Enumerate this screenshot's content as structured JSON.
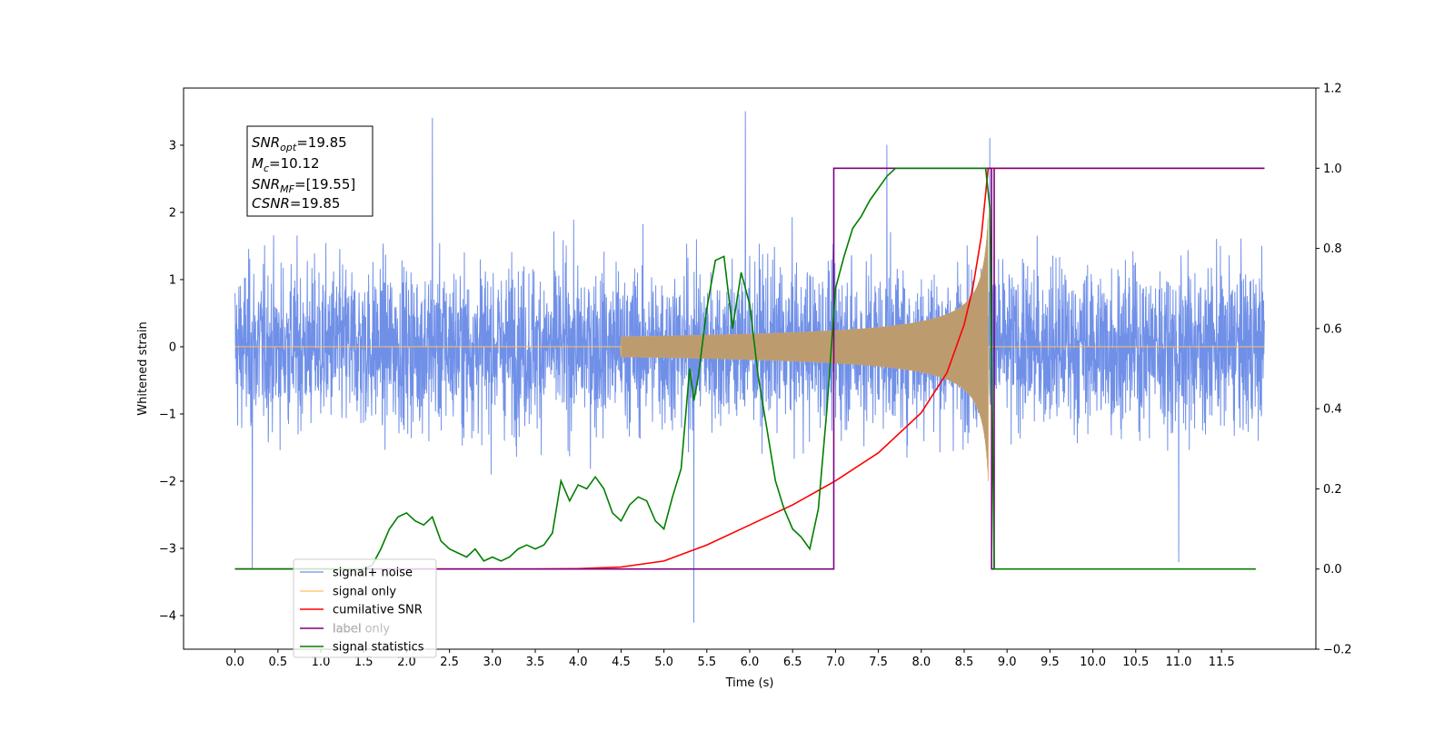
{
  "chart_data": {
    "type": "line",
    "xlabel": "Time (s)",
    "ylabel": "Whitened strain",
    "xlim": [
      -0.6,
      12.6
    ],
    "ylim": [
      -4.5,
      3.85
    ],
    "y2lim": [
      -0.2,
      1.2
    ],
    "x_ticks": [
      "0.0",
      "0.5",
      "1.0",
      "1.5",
      "2.0",
      "2.5",
      "3.0",
      "3.5",
      "4.0",
      "4.5",
      "5.0",
      "5.5",
      "6.0",
      "6.5",
      "7.0",
      "7.5",
      "8.0",
      "8.5",
      "9.0",
      "9.5",
      "10.0",
      "10.5",
      "11.0",
      "11.5"
    ],
    "y_ticks": [
      "−4",
      "−3",
      "−2",
      "−1",
      "0",
      "1",
      "2",
      "3"
    ],
    "y2_ticks": [
      "−0.2",
      "0.0",
      "0.2",
      "0.4",
      "0.6",
      "0.8",
      "1.0",
      "1.2"
    ],
    "grid": false,
    "legend_position": "lower-left",
    "annotation": {
      "snr_opt": {
        "label": "SNR",
        "sub": "opt",
        "value": "=19.85"
      },
      "mc": {
        "label": "M",
        "sub": "c",
        "value": "=10.12"
      },
      "snr_mf": {
        "label": "SNR",
        "sub": "MF",
        "value": "=[19.55]"
      },
      "csnr": {
        "label": "CSNR",
        "sub": "",
        "value": "=19.85"
      }
    },
    "series": [
      {
        "name": "signal+ noise",
        "color": "#7090e8",
        "axis": "left",
        "x_range": [
          0.0,
          12.0
        ],
        "description_kind": "noise",
        "amplitude": 1.3,
        "extreme_x": [
          0.2,
          2.3,
          5.35,
          5.95,
          7.6,
          8.8,
          11.0
        ],
        "extreme_y": [
          -3.3,
          3.4,
          -4.1,
          3.5,
          3.0,
          3.1,
          -3.2
        ]
      },
      {
        "name": "signal only",
        "color": "#ffbf60",
        "axis": "left",
        "chirp_start": 4.5,
        "merger": 8.78,
        "peak_amplitude": 2.0
      },
      {
        "name": "cumilative SNR",
        "color": "#ff0000",
        "axis": "right",
        "x": [
          0.0,
          3.5,
          4.0,
          4.5,
          5.0,
          5.5,
          6.0,
          6.5,
          7.0,
          7.5,
          8.0,
          8.3,
          8.5,
          8.6,
          8.7,
          8.78,
          8.8,
          12.0
        ],
        "y": [
          0.0,
          0.0,
          0.001,
          0.005,
          0.02,
          0.06,
          0.11,
          0.16,
          0.22,
          0.29,
          0.39,
          0.49,
          0.61,
          0.7,
          0.83,
          1.0,
          1.0,
          1.0
        ]
      },
      {
        "name": "label",
        "color": "#7f007f",
        "axis": "right",
        "x": [
          0.0,
          6.98,
          6.98,
          8.82,
          8.82,
          8.85,
          8.85,
          12.0
        ],
        "y": [
          0.0,
          0.0,
          1.0,
          1.0,
          0.0,
          0.0,
          1.0,
          1.0
        ]
      },
      {
        "name": "label only",
        "color": "#7f007f",
        "axis": "right",
        "x": [],
        "y": []
      },
      {
        "name": "signal statistics",
        "color": "#007f00",
        "axis": "right",
        "x": [
          0.0,
          1.5,
          1.6,
          1.7,
          1.8,
          1.9,
          2.0,
          2.1,
          2.2,
          2.3,
          2.4,
          2.5,
          2.6,
          2.7,
          2.8,
          2.9,
          3.0,
          3.1,
          3.2,
          3.3,
          3.4,
          3.5,
          3.6,
          3.7,
          3.8,
          3.9,
          4.0,
          4.1,
          4.2,
          4.3,
          4.4,
          4.5,
          4.6,
          4.7,
          4.8,
          4.9,
          5.0,
          5.1,
          5.2,
          5.3,
          5.35,
          5.4,
          5.5,
          5.6,
          5.7,
          5.8,
          5.9,
          6.0,
          6.1,
          6.2,
          6.3,
          6.4,
          6.5,
          6.6,
          6.7,
          6.8,
          6.9,
          7.0,
          7.1,
          7.2,
          7.3,
          7.4,
          7.5,
          7.6,
          7.7,
          7.8,
          7.9,
          8.0,
          8.2,
          8.4,
          8.6,
          8.75,
          8.8,
          8.85,
          8.9,
          11.9
        ],
        "y": [
          0.0,
          0.0,
          0.01,
          0.05,
          0.1,
          0.13,
          0.14,
          0.12,
          0.11,
          0.13,
          0.07,
          0.05,
          0.04,
          0.03,
          0.05,
          0.02,
          0.03,
          0.02,
          0.03,
          0.05,
          0.06,
          0.05,
          0.06,
          0.09,
          0.22,
          0.17,
          0.21,
          0.2,
          0.23,
          0.2,
          0.14,
          0.12,
          0.16,
          0.18,
          0.17,
          0.12,
          0.1,
          0.18,
          0.25,
          0.5,
          0.42,
          0.48,
          0.65,
          0.77,
          0.78,
          0.6,
          0.74,
          0.66,
          0.48,
          0.35,
          0.22,
          0.15,
          0.1,
          0.08,
          0.05,
          0.15,
          0.4,
          0.7,
          0.78,
          0.85,
          0.88,
          0.92,
          0.95,
          0.98,
          1.0,
          1.0,
          1.0,
          1.0,
          1.0,
          1.0,
          1.0,
          1.0,
          0.9,
          0.0,
          0.0,
          0.0
        ]
      }
    ]
  }
}
